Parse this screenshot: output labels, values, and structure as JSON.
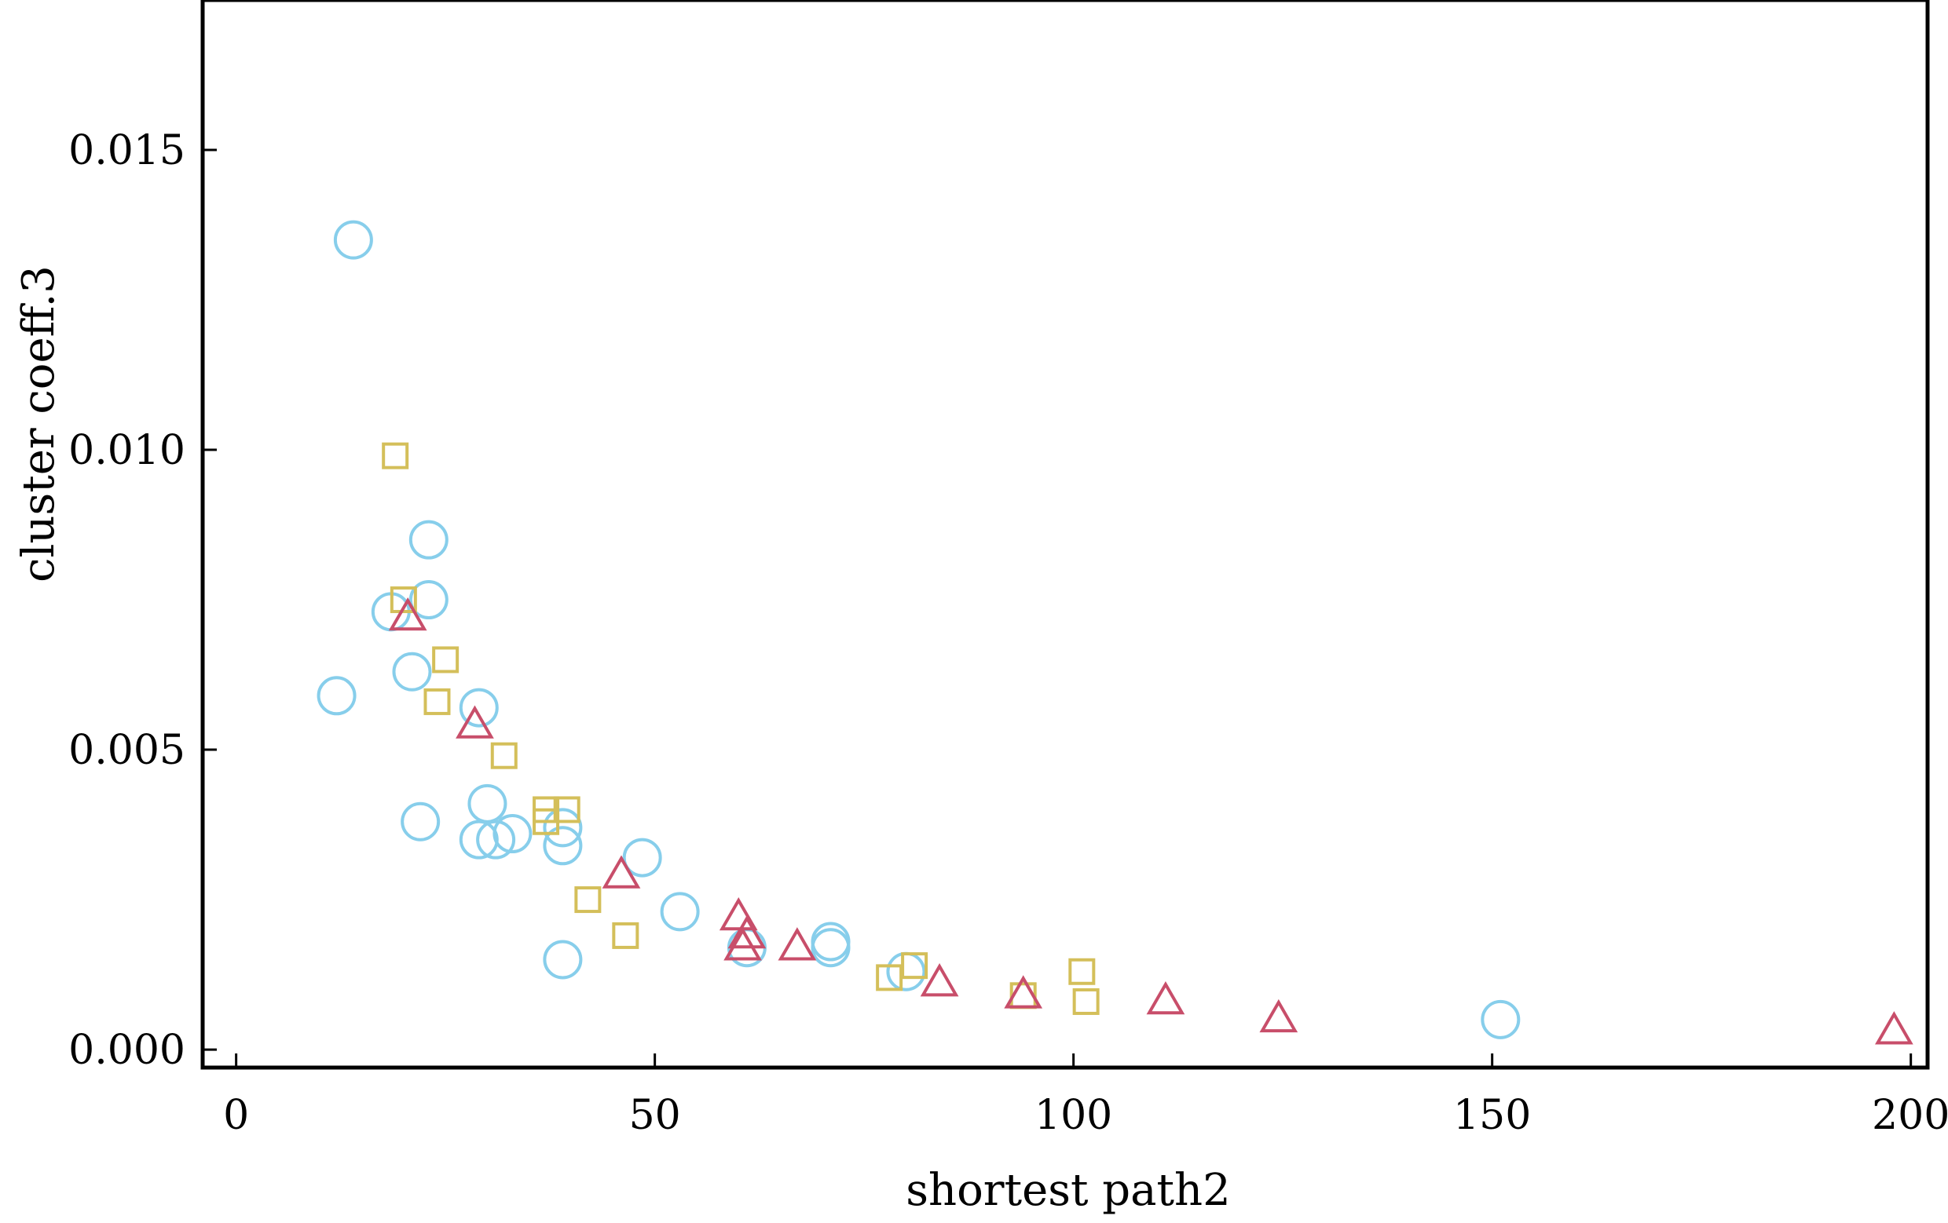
{
  "chart_data": {
    "type": "scatter",
    "title": "",
    "xlabel": "shortest path2",
    "ylabel": "cluster coeff.3",
    "xlim": [
      -4,
      202
    ],
    "ylim": [
      -0.0003,
      0.0175
    ],
    "xticks": [
      0,
      50,
      100,
      150,
      200
    ],
    "xtick_labels": [
      "0",
      "50",
      "100",
      "150",
      "200"
    ],
    "yticks": [
      0.0,
      0.005,
      0.01,
      0.015
    ],
    "ytick_labels": [
      "0.000",
      "0.005",
      "0.010",
      "0.015"
    ],
    "grid": false,
    "legend": "none",
    "series": [
      {
        "marker": "circle",
        "color": "#87CEEB",
        "points": [
          [
            14,
            0.0135
          ],
          [
            12,
            0.0059
          ],
          [
            18.5,
            0.0073
          ],
          [
            23,
            0.0085
          ],
          [
            23,
            0.0075
          ],
          [
            21,
            0.0063
          ],
          [
            22,
            0.0038
          ],
          [
            29,
            0.0057
          ],
          [
            30,
            0.0041
          ],
          [
            29,
            0.0035
          ],
          [
            31,
            0.0035
          ],
          [
            33,
            0.0036
          ],
          [
            39,
            0.0037
          ],
          [
            39,
            0.0034
          ],
          [
            48.5,
            0.0032
          ],
          [
            53,
            0.0023
          ],
          [
            39,
            0.0015
          ],
          [
            61,
            0.0017
          ],
          [
            71,
            0.0018
          ],
          [
            71,
            0.0017
          ],
          [
            80,
            0.0013
          ],
          [
            151,
            0.0005
          ]
        ]
      },
      {
        "marker": "square",
        "color": "#D4BF5A",
        "points": [
          [
            19,
            0.0099
          ],
          [
            20,
            0.0075
          ],
          [
            25,
            0.0065
          ],
          [
            24,
            0.0058
          ],
          [
            32,
            0.0049
          ],
          [
            37,
            0.004
          ],
          [
            37,
            0.0038
          ],
          [
            39.5,
            0.004
          ],
          [
            42,
            0.0025
          ],
          [
            46.5,
            0.0019
          ],
          [
            78,
            0.0012
          ],
          [
            81,
            0.0014
          ],
          [
            94,
            0.0009
          ],
          [
            101,
            0.0013
          ],
          [
            101.5,
            0.0008
          ]
        ]
      },
      {
        "marker": "triangle",
        "color": "#C84E6A",
        "points": [
          [
            20.5,
            0.0072
          ],
          [
            28.5,
            0.0054
          ],
          [
            46,
            0.0029
          ],
          [
            60,
            0.0022
          ],
          [
            61,
            0.0019
          ],
          [
            60.5,
            0.0017
          ],
          [
            67,
            0.0017
          ],
          [
            84,
            0.0011
          ],
          [
            94,
            0.0009
          ],
          [
            111,
            0.0008
          ],
          [
            124.5,
            0.0005
          ],
          [
            198,
            0.0003
          ]
        ]
      }
    ]
  }
}
